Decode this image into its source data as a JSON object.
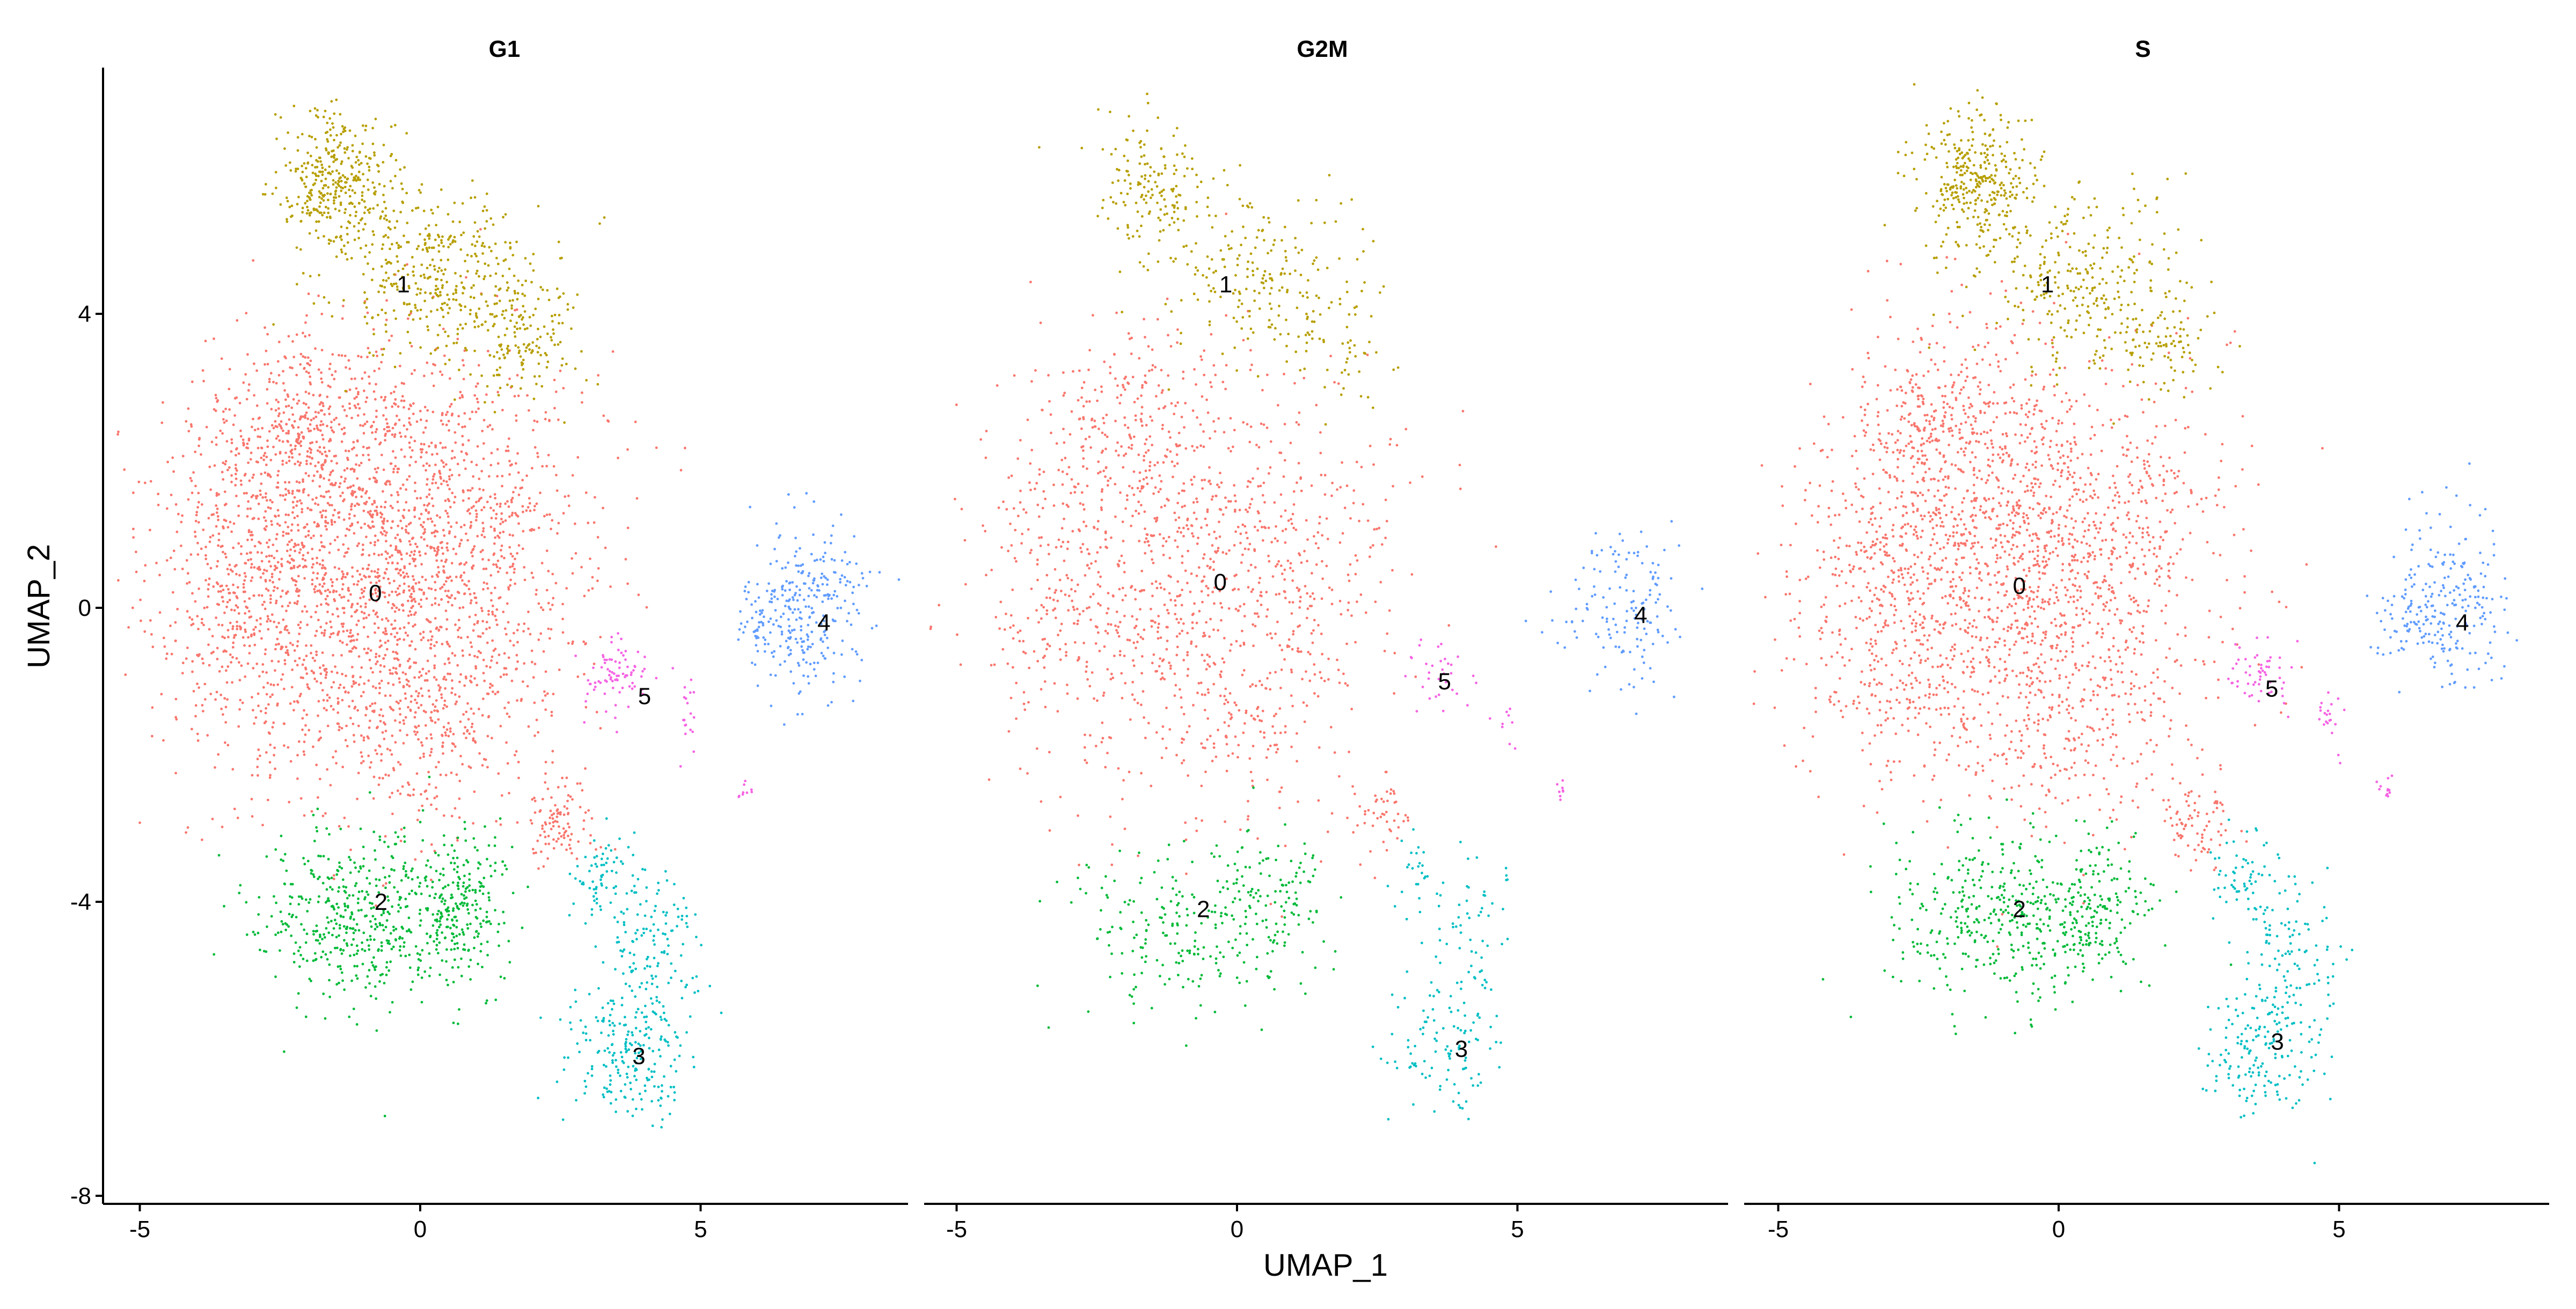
{
  "chart_data": {
    "type": "scatter",
    "xlabel": "UMAP_1",
    "ylabel": "UMAP_2",
    "xlim": [
      -5.6,
      8.7
    ],
    "ylim": [
      -8.2,
      7.4
    ],
    "x_ticks": [
      -5,
      0,
      5
    ],
    "y_ticks": [
      -8,
      -4,
      0,
      4
    ],
    "x_tick_labels": [
      "-5",
      "0",
      "5"
    ],
    "y_tick_labels": [
      "-8",
      "-4",
      "0",
      "4"
    ],
    "grid": false,
    "legend": "none",
    "clusters": [
      {
        "name": "0",
        "color": "#F8766D"
      },
      {
        "name": "1",
        "color": "#B79F00"
      },
      {
        "name": "2",
        "color": "#00BA38"
      },
      {
        "name": "3",
        "color": "#00BFC4"
      },
      {
        "name": "4",
        "color": "#619CFF"
      },
      {
        "name": "5",
        "color": "#F564E3"
      }
    ],
    "facets": [
      {
        "title": "G1",
        "density": 1.0,
        "label_positions": [
          {
            "label": "0",
            "x": -0.8,
            "y": 0.2
          },
          {
            "label": "1",
            "x": -0.3,
            "y": 4.4
          },
          {
            "label": "2",
            "x": -0.7,
            "y": -4.0
          },
          {
            "label": "3",
            "x": 3.9,
            "y": -6.1
          },
          {
            "label": "4",
            "x": 7.2,
            "y": -0.2
          },
          {
            "label": "5",
            "x": 4.0,
            "y": -1.2
          }
        ]
      },
      {
        "title": "G2M",
        "density": 0.45,
        "label_positions": [
          {
            "label": "0",
            "x": -0.3,
            "y": 0.35
          },
          {
            "label": "1",
            "x": -0.2,
            "y": 4.4
          },
          {
            "label": "2",
            "x": -0.6,
            "y": -4.1
          },
          {
            "label": "3",
            "x": 4.0,
            "y": -6.0
          },
          {
            "label": "4",
            "x": 7.2,
            "y": -0.1
          },
          {
            "label": "5",
            "x": 3.7,
            "y": -1.0
          }
        ]
      },
      {
        "title": "S",
        "density": 0.8,
        "label_positions": [
          {
            "label": "0",
            "x": -0.7,
            "y": 0.3
          },
          {
            "label": "1",
            "x": -0.2,
            "y": 4.4
          },
          {
            "label": "2",
            "x": -0.7,
            "y": -4.1
          },
          {
            "label": "3",
            "x": 3.9,
            "y": -5.9
          },
          {
            "label": "4",
            "x": 7.2,
            "y": -0.2
          },
          {
            "label": "5",
            "x": 3.8,
            "y": -1.1
          }
        ]
      }
    ]
  }
}
